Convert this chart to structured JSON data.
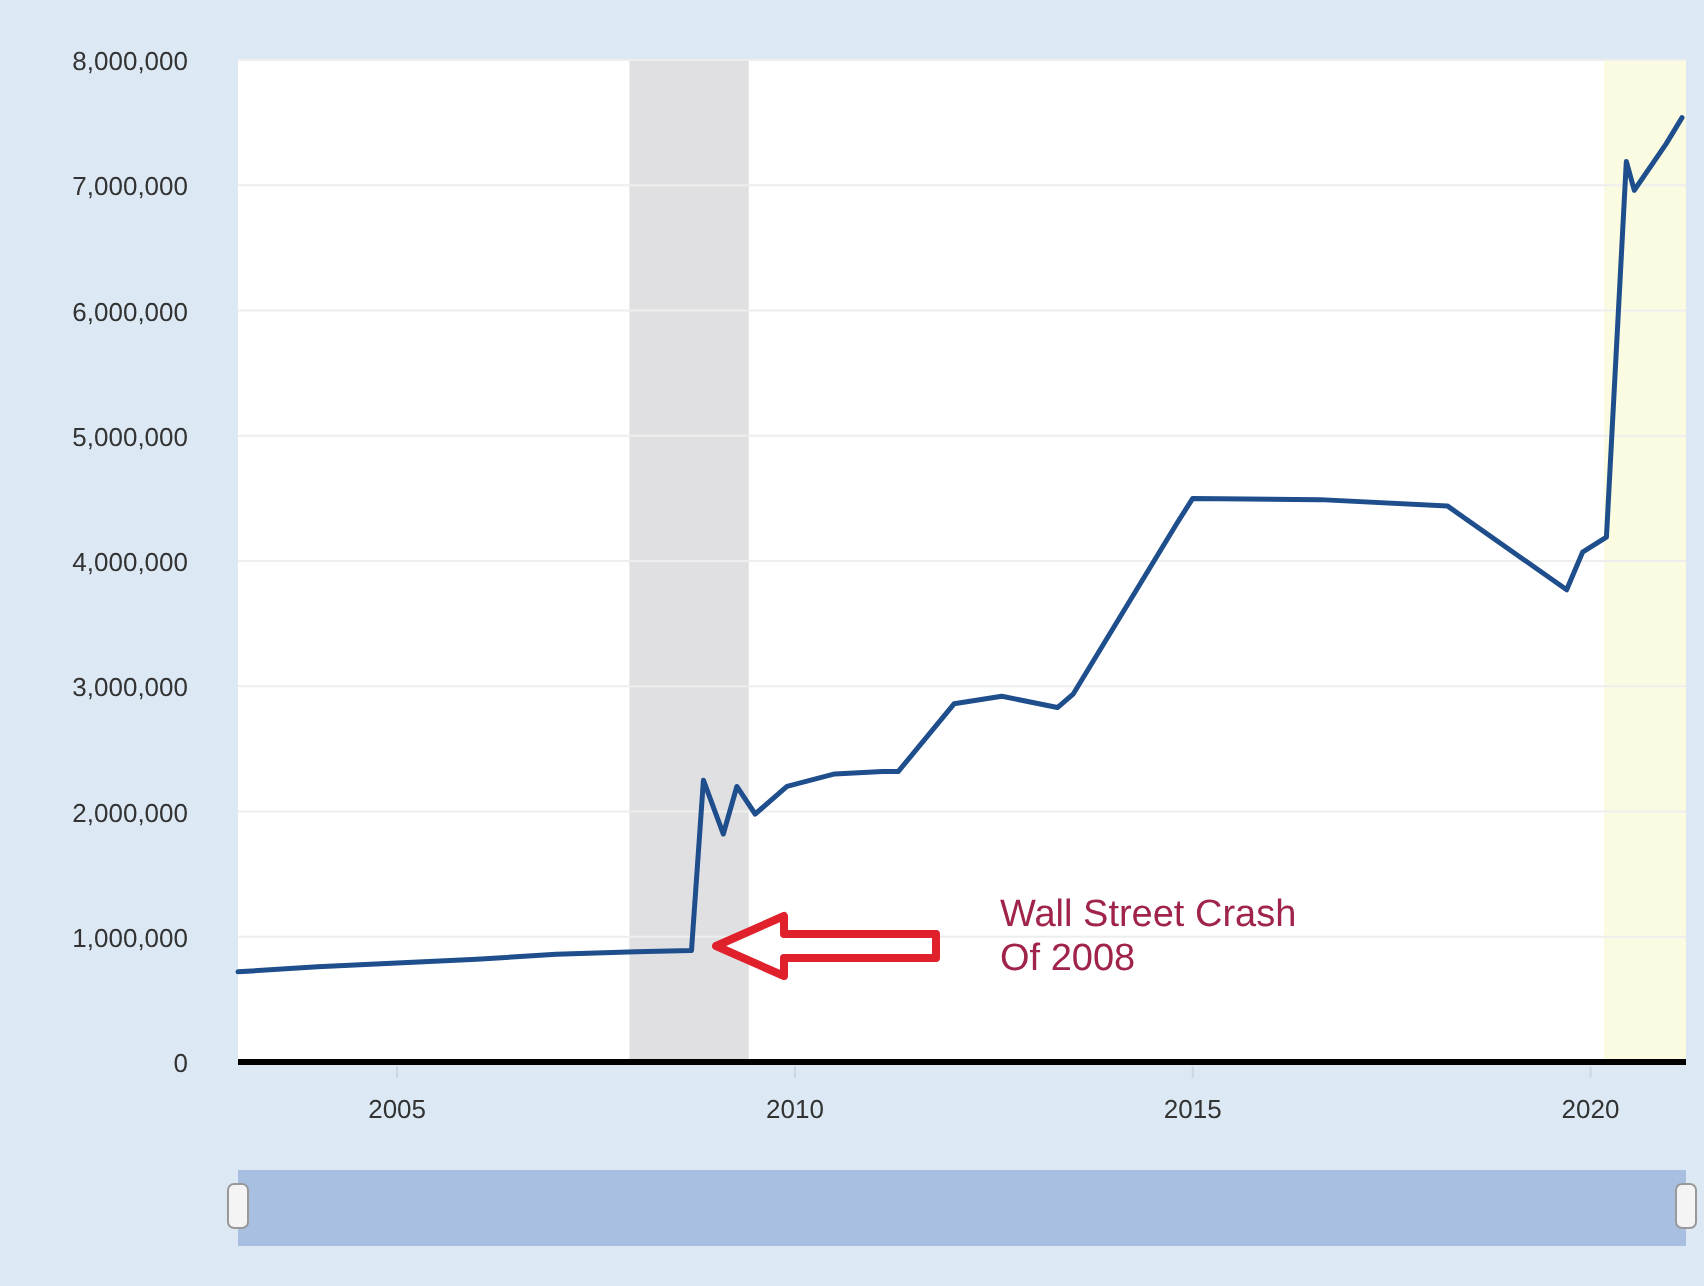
{
  "chart_data": {
    "type": "line",
    "x": [
      2003.0,
      2004.0,
      2005.0,
      2006.0,
      2007.0,
      2008.0,
      2008.7,
      2008.85,
      2009.1,
      2009.27,
      2009.5,
      2009.9,
      2010.5,
      2011.1,
      2011.3,
      2012.0,
      2012.6,
      2013.3,
      2013.5,
      2014.8,
      2015.0,
      2016.6,
      2018.2,
      2019.7,
      2019.9,
      2020.1,
      2020.2,
      2020.45,
      2020.55,
      2020.95,
      2021.15
    ],
    "series": [
      {
        "color": "#1f4e8c",
        "values": [
          720000,
          760000,
          790000,
          820000,
          860000,
          880000,
          890000,
          2250000,
          1820000,
          2200000,
          1980000,
          2200000,
          2300000,
          2320000,
          2320000,
          2860000,
          2920000,
          2830000,
          2940000,
          4300000,
          4500000,
          4490000,
          4440000,
          3770000,
          4070000,
          4150000,
          4190000,
          7190000,
          6960000,
          7330000,
          7540000
        ]
      }
    ],
    "xlim": [
      2003.0,
      2021.2
    ],
    "xticks": [
      2005,
      2010,
      2015,
      2020
    ],
    "ylim": [
      0,
      8000000
    ],
    "yticks": [
      0,
      {
        "value": 1000000,
        "label": "1,000,000"
      },
      {
        "value": 2000000,
        "label": "2,000,000"
      },
      {
        "value": 3000000,
        "label": "3,000,000"
      },
      {
        "value": 4000000,
        "label": "4,000,000"
      },
      {
        "value": 5000000,
        "label": "5,000,000"
      },
      {
        "value": 6000000,
        "label": "6,000,000"
      },
      {
        "value": 7000000,
        "label": "7,000,000"
      },
      {
        "value": 8000000,
        "label": "8,000,000"
      }
    ],
    "grid": "y",
    "line_style": "solid",
    "marker": "none",
    "bands": [
      {
        "axis": "x",
        "from": 2007.92,
        "to": 2009.42,
        "color": "#e0e0e2"
      },
      {
        "axis": "x",
        "from": 2020.17,
        "to": 2021.2,
        "color": "#fbfbe2"
      }
    ],
    "annotations": [
      "Wall Street Crash\nOf 2008"
    ]
  }
}
